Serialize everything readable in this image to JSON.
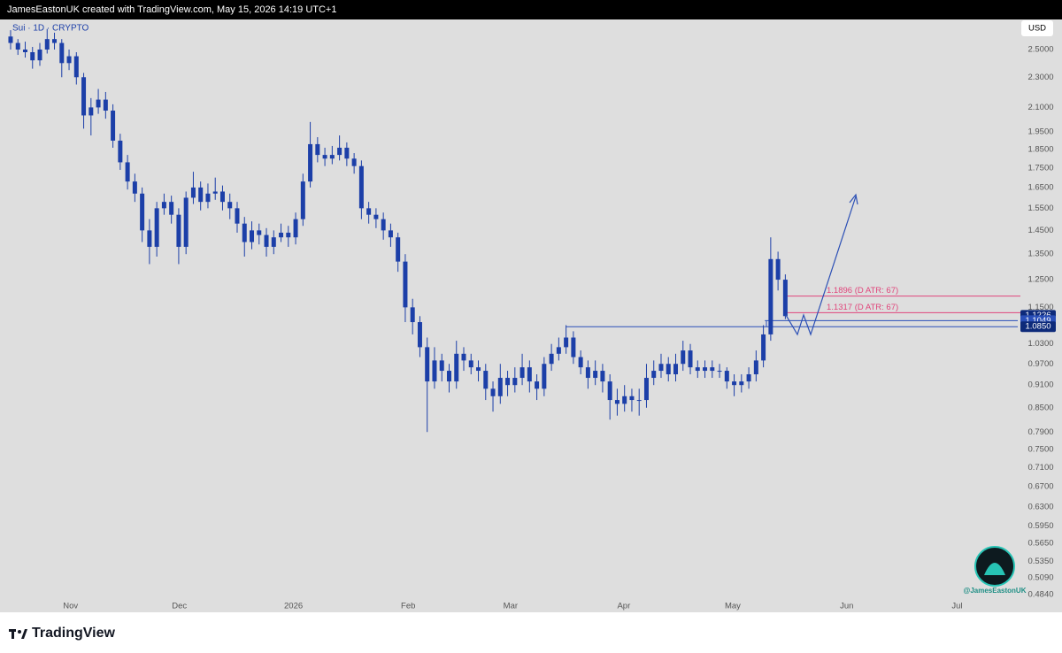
{
  "header": {
    "attribution": "JamesEastonUK created with TradingView.com, May 15, 2026 14:19 UTC+1"
  },
  "chart_data": {
    "type": "candlestick",
    "symbol": "Sui · 1D · CRYPTO",
    "currency": "USD",
    "log_scale": true,
    "grid": false,
    "color": "#1c3fa8",
    "ylim": [
      0.459,
      2.737
    ],
    "xlim": [
      -1.45,
      137.8
    ],
    "yticks": [
      {
        "value": 2.5,
        "label": "2.5000"
      },
      {
        "value": 2.3,
        "label": "2.3000"
      },
      {
        "value": 2.1,
        "label": "2.1000"
      },
      {
        "value": 1.95,
        "label": "1.9500"
      },
      {
        "value": 1.85,
        "label": "1.8500"
      },
      {
        "value": 1.75,
        "label": "1.7500"
      },
      {
        "value": 1.65,
        "label": "1.6500"
      },
      {
        "value": 1.55,
        "label": "1.5500"
      },
      {
        "value": 1.45,
        "label": "1.4500"
      },
      {
        "value": 1.35,
        "label": "1.3500"
      },
      {
        "value": 1.25,
        "label": "1.2500"
      },
      {
        "value": 1.15,
        "label": "1.1500"
      },
      {
        "value": 1.03,
        "label": "1.0300"
      },
      {
        "value": 0.97,
        "label": "0.9700"
      },
      {
        "value": 0.91,
        "label": "0.9100"
      },
      {
        "value": 0.85,
        "label": "0.8500"
      },
      {
        "value": 0.79,
        "label": "0.7900"
      },
      {
        "value": 0.75,
        "label": "0.7500"
      },
      {
        "value": 0.71,
        "label": "0.7100"
      },
      {
        "value": 0.67,
        "label": "0.6700"
      },
      {
        "value": 0.63,
        "label": "0.6300"
      },
      {
        "value": 0.595,
        "label": "0.5950"
      },
      {
        "value": 0.565,
        "label": "0.5650"
      },
      {
        "value": 0.535,
        "label": "0.5350"
      },
      {
        "value": 0.509,
        "label": "0.5090"
      },
      {
        "value": 0.484,
        "label": "0.4840"
      }
    ],
    "xticks": [
      {
        "value": 8.2,
        "label": "Nov"
      },
      {
        "value": 23.1,
        "label": "Dec"
      },
      {
        "value": 38.7,
        "label": "2026"
      },
      {
        "value": 54.4,
        "label": "Feb"
      },
      {
        "value": 68.4,
        "label": "Mar"
      },
      {
        "value": 83.9,
        "label": "Apr"
      },
      {
        "value": 98.8,
        "label": "May"
      },
      {
        "value": 114.4,
        "label": "Jun"
      },
      {
        "value": 129.5,
        "label": "Jul"
      }
    ],
    "price_labels": [
      {
        "value": 1.1226,
        "color": "#0d2a7a"
      },
      {
        "value": 1.1049,
        "color": "#2a4fb8"
      },
      {
        "value": 1.085,
        "label": "1.0850",
        "color": "#0d2a7a"
      }
    ],
    "levels": [
      {
        "value": 1.1896,
        "label": "1.1896 (D ATR: 67)",
        "color": "#e0457b"
      },
      {
        "value": 1.1317,
        "label": "1.1317 (D ATR: 67)",
        "color": "#e0457b"
      },
      {
        "value": 1.085,
        "color": "#2a4fb8"
      },
      {
        "value": 1.1049,
        "color": "#2a4fb8"
      }
    ],
    "series": [
      {
        "name": "Sui",
        "color": "#1c3fa8",
        "ohlc": [
          [
            2.6,
            2.65,
            2.5,
            2.55
          ],
          [
            2.55,
            2.58,
            2.46,
            2.5
          ],
          [
            2.5,
            2.56,
            2.44,
            2.48
          ],
          [
            2.48,
            2.52,
            2.36,
            2.42
          ],
          [
            2.42,
            2.55,
            2.38,
            2.5
          ],
          [
            2.5,
            2.66,
            2.47,
            2.58
          ],
          [
            2.58,
            2.63,
            2.5,
            2.55
          ],
          [
            2.55,
            2.58,
            2.3,
            2.4
          ],
          [
            2.4,
            2.5,
            2.35,
            2.45
          ],
          [
            2.45,
            2.48,
            2.25,
            2.3
          ],
          [
            2.3,
            2.33,
            1.97,
            2.05
          ],
          [
            2.05,
            2.16,
            1.93,
            2.1
          ],
          [
            2.1,
            2.22,
            2.06,
            2.15
          ],
          [
            2.15,
            2.2,
            2.03,
            2.08
          ],
          [
            2.08,
            2.12,
            1.86,
            1.9
          ],
          [
            1.9,
            1.94,
            1.74,
            1.78
          ],
          [
            1.78,
            1.82,
            1.64,
            1.68
          ],
          [
            1.68,
            1.72,
            1.58,
            1.62
          ],
          [
            1.62,
            1.65,
            1.4,
            1.45
          ],
          [
            1.45,
            1.5,
            1.31,
            1.38
          ],
          [
            1.38,
            1.58,
            1.34,
            1.55
          ],
          [
            1.55,
            1.62,
            1.52,
            1.58
          ],
          [
            1.58,
            1.61,
            1.48,
            1.52
          ],
          [
            1.52,
            1.55,
            1.31,
            1.38
          ],
          [
            1.38,
            1.63,
            1.35,
            1.6
          ],
          [
            1.6,
            1.73,
            1.57,
            1.65
          ],
          [
            1.65,
            1.68,
            1.54,
            1.58
          ],
          [
            1.58,
            1.67,
            1.55,
            1.62
          ],
          [
            1.62,
            1.7,
            1.59,
            1.63
          ],
          [
            1.63,
            1.66,
            1.54,
            1.58
          ],
          [
            1.58,
            1.62,
            1.5,
            1.55
          ],
          [
            1.55,
            1.58,
            1.44,
            1.48
          ],
          [
            1.48,
            1.51,
            1.34,
            1.4
          ],
          [
            1.4,
            1.49,
            1.37,
            1.45
          ],
          [
            1.45,
            1.48,
            1.39,
            1.43
          ],
          [
            1.43,
            1.46,
            1.34,
            1.38
          ],
          [
            1.38,
            1.45,
            1.35,
            1.42
          ],
          [
            1.42,
            1.48,
            1.4,
            1.44
          ],
          [
            1.44,
            1.47,
            1.38,
            1.42
          ],
          [
            1.42,
            1.53,
            1.39,
            1.5
          ],
          [
            1.5,
            1.72,
            1.47,
            1.68
          ],
          [
            1.68,
            2.01,
            1.65,
            1.88
          ],
          [
            1.88,
            1.92,
            1.78,
            1.82
          ],
          [
            1.82,
            1.86,
            1.76,
            1.8
          ],
          [
            1.8,
            1.87,
            1.77,
            1.82
          ],
          [
            1.82,
            1.93,
            1.79,
            1.86
          ],
          [
            1.86,
            1.89,
            1.76,
            1.8
          ],
          [
            1.8,
            1.83,
            1.72,
            1.76
          ],
          [
            1.76,
            1.79,
            1.5,
            1.55
          ],
          [
            1.55,
            1.58,
            1.48,
            1.52
          ],
          [
            1.52,
            1.55,
            1.46,
            1.5
          ],
          [
            1.5,
            1.53,
            1.41,
            1.45
          ],
          [
            1.45,
            1.48,
            1.38,
            1.42
          ],
          [
            1.42,
            1.44,
            1.28,
            1.32
          ],
          [
            1.32,
            1.35,
            1.1,
            1.15
          ],
          [
            1.15,
            1.18,
            1.06,
            1.1
          ],
          [
            1.1,
            1.12,
            0.99,
            1.02
          ],
          [
            1.02,
            1.05,
            0.79,
            0.92
          ],
          [
            0.92,
            1.02,
            0.9,
            0.98
          ],
          [
            0.98,
            1.0,
            0.92,
            0.95
          ],
          [
            0.95,
            0.97,
            0.89,
            0.92
          ],
          [
            0.92,
            1.04,
            0.9,
            1.0
          ],
          [
            1.0,
            1.02,
            0.95,
            0.98
          ],
          [
            0.98,
            1.0,
            0.94,
            0.96
          ],
          [
            0.96,
            0.98,
            0.92,
            0.95
          ],
          [
            0.95,
            0.97,
            0.87,
            0.9
          ],
          [
            0.9,
            0.92,
            0.84,
            0.88
          ],
          [
            0.88,
            0.97,
            0.86,
            0.93
          ],
          [
            0.93,
            0.95,
            0.88,
            0.91
          ],
          [
            0.91,
            0.96,
            0.89,
            0.93
          ],
          [
            0.93,
            1.0,
            0.91,
            0.96
          ],
          [
            0.96,
            0.98,
            0.89,
            0.92
          ],
          [
            0.92,
            0.94,
            0.87,
            0.9
          ],
          [
            0.9,
            0.99,
            0.88,
            0.97
          ],
          [
            0.97,
            1.03,
            0.95,
            1.0
          ],
          [
            1.0,
            1.05,
            0.98,
            1.02
          ],
          [
            1.02,
            1.09,
            1.0,
            1.05
          ],
          [
            1.05,
            1.07,
            0.97,
            0.99
          ],
          [
            0.99,
            1.01,
            0.94,
            0.96
          ],
          [
            0.96,
            0.98,
            0.9,
            0.93
          ],
          [
            0.93,
            0.98,
            0.91,
            0.95
          ],
          [
            0.95,
            0.97,
            0.89,
            0.92
          ],
          [
            0.92,
            0.94,
            0.82,
            0.87
          ],
          [
            0.87,
            0.9,
            0.83,
            0.86
          ],
          [
            0.86,
            0.91,
            0.84,
            0.88
          ],
          [
            0.88,
            0.9,
            0.84,
            0.87
          ],
          [
            0.87,
            0.9,
            0.83,
            0.87
          ],
          [
            0.87,
            0.97,
            0.85,
            0.93
          ],
          [
            0.93,
            0.98,
            0.91,
            0.95
          ],
          [
            0.95,
            1.0,
            0.93,
            0.97
          ],
          [
            0.97,
            0.99,
            0.92,
            0.94
          ],
          [
            0.94,
            1.0,
            0.92,
            0.97
          ],
          [
            0.97,
            1.04,
            0.95,
            1.01
          ],
          [
            1.01,
            1.03,
            0.94,
            0.96
          ],
          [
            0.96,
            0.98,
            0.93,
            0.95
          ],
          [
            0.95,
            0.98,
            0.93,
            0.96
          ],
          [
            0.96,
            0.98,
            0.93,
            0.95
          ],
          [
            0.95,
            0.97,
            0.93,
            0.95
          ],
          [
            0.95,
            0.96,
            0.9,
            0.92
          ],
          [
            0.92,
            0.94,
            0.88,
            0.91
          ],
          [
            0.91,
            0.94,
            0.89,
            0.92
          ],
          [
            0.92,
            0.96,
            0.9,
            0.94
          ],
          [
            0.94,
            1.01,
            0.92,
            0.98
          ],
          [
            0.98,
            1.09,
            0.96,
            1.06
          ],
          [
            1.06,
            1.42,
            1.04,
            1.33
          ],
          [
            1.33,
            1.36,
            1.21,
            1.25
          ],
          [
            1.25,
            1.27,
            1.11,
            1.12
          ]
        ]
      }
    ],
    "watermark": "@JamesEastonUK"
  },
  "footer": {
    "brand": "TradingView"
  }
}
